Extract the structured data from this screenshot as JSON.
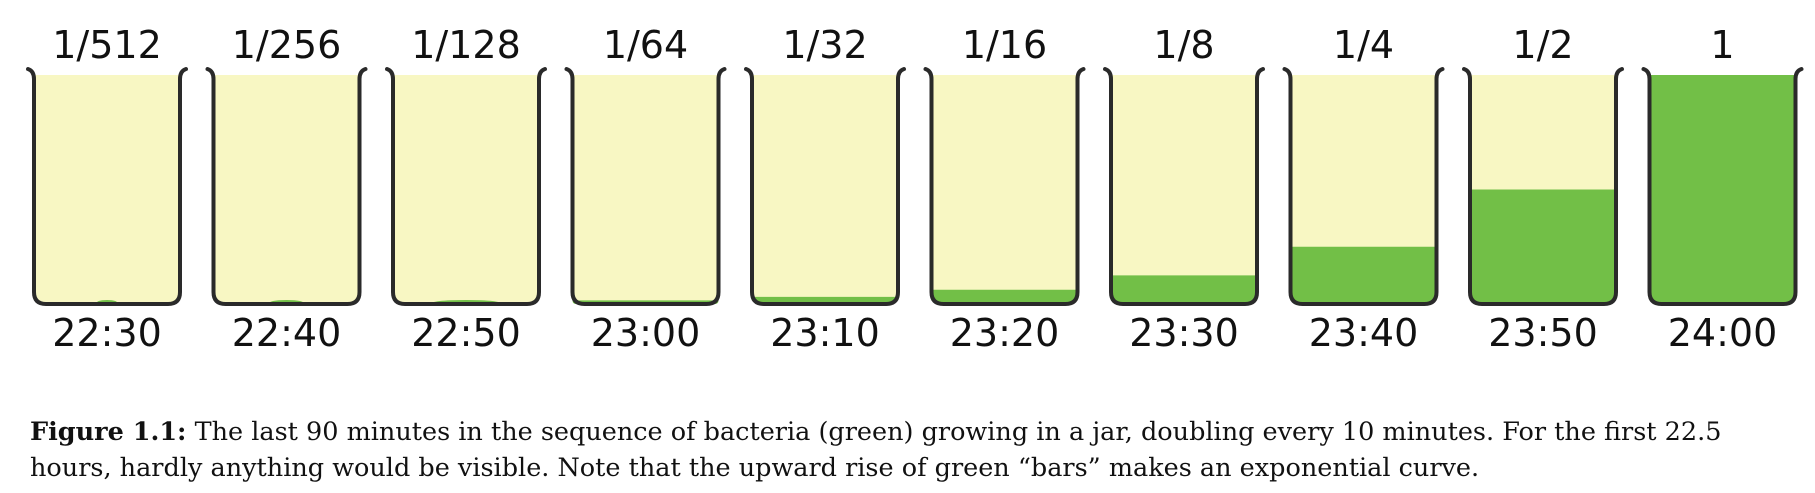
{
  "figure": {
    "jars": [
      {
        "fraction_label": "1/512",
        "time": "22:30",
        "fill_fraction": 0.001953
      },
      {
        "fraction_label": "1/256",
        "time": "22:40",
        "fill_fraction": 0.003906
      },
      {
        "fraction_label": "1/128",
        "time": "22:50",
        "fill_fraction": 0.007813
      },
      {
        "fraction_label": "1/64",
        "time": "23:00",
        "fill_fraction": 0.015625
      },
      {
        "fraction_label": "1/32",
        "time": "23:10",
        "fill_fraction": 0.03125
      },
      {
        "fraction_label": "1/16",
        "time": "23:20",
        "fill_fraction": 0.0625
      },
      {
        "fraction_label": "1/8",
        "time": "23:30",
        "fill_fraction": 0.125
      },
      {
        "fraction_label": "1/4",
        "time": "23:40",
        "fill_fraction": 0.25
      },
      {
        "fraction_label": "1/2",
        "time": "23:50",
        "fill_fraction": 0.5
      },
      {
        "fraction_label": "1",
        "time": "24:00",
        "fill_fraction": 1.0
      }
    ],
    "colors": {
      "bacteria": "#72bf47",
      "jar_background": "#f8f7c3",
      "jar_outline": "#2a2a2a"
    }
  },
  "caption": {
    "label": "Figure 1.1:",
    "text": " The last 90 minutes in the sequence of bacteria (green) growing in a jar, doubling every 10 minutes. For the first 22.5 hours, hardly anything would be visible. Note that the upward rise of green “bars” makes an exponential curve."
  }
}
